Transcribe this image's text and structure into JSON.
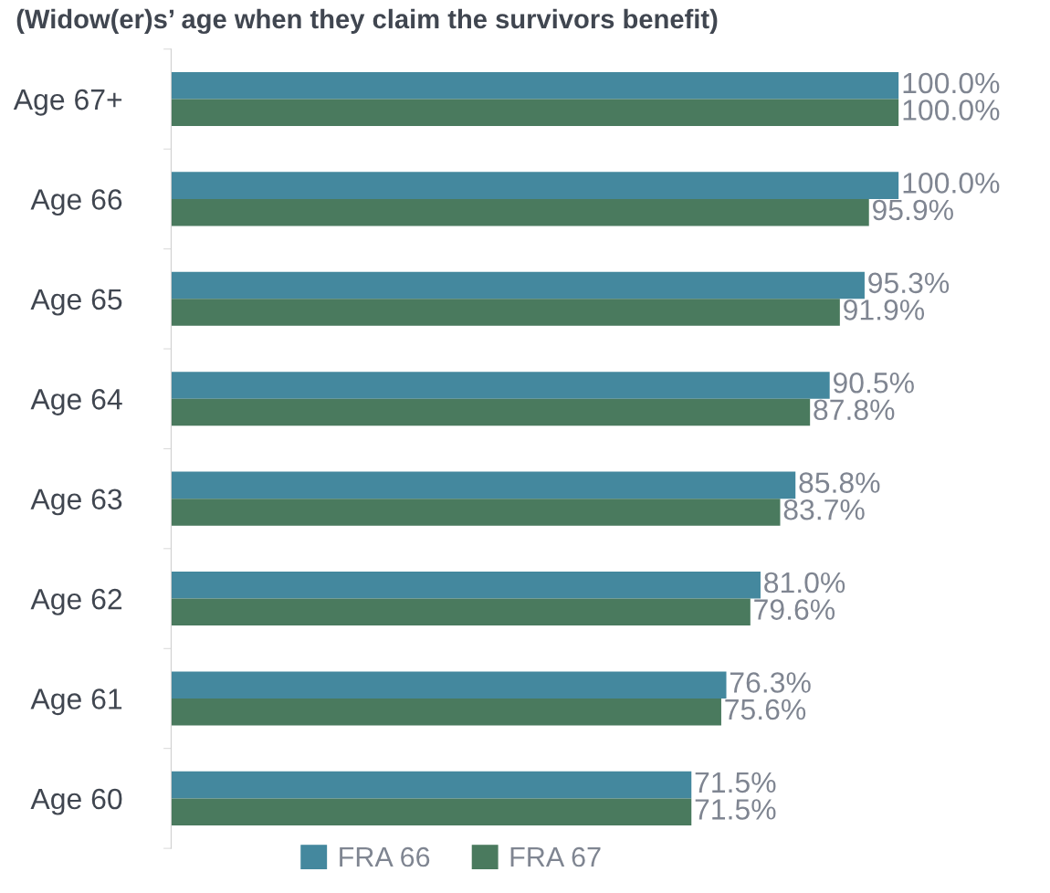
{
  "chart_data": {
    "type": "bar",
    "orientation": "horizontal",
    "title": "(Widow(er)s’ age when they claim the survivors benefit)",
    "categories": [
      "Age 67+",
      "Age 66",
      "Age 65",
      "Age 64",
      "Age 63",
      "Age 62",
      "Age 61",
      "Age 60"
    ],
    "series": [
      {
        "name": "FRA 66",
        "color": "#44889e",
        "values": [
          100.0,
          100.0,
          95.3,
          90.5,
          85.8,
          81.0,
          76.3,
          71.5
        ],
        "value_labels": [
          "100.0%",
          "100.0%",
          "95.3%",
          "90.5%",
          "85.8%",
          "81.0%",
          "76.3%",
          "71.5%"
        ]
      },
      {
        "name": "FRA 67",
        "color": "#4a7a5e",
        "values": [
          100.0,
          95.9,
          91.9,
          87.8,
          83.7,
          79.6,
          75.6,
          71.5
        ],
        "value_labels": [
          "100.0%",
          "95.9%",
          "91.9%",
          "87.8%",
          "83.7%",
          "79.6%",
          "75.6%",
          "71.5%"
        ]
      }
    ],
    "legend": "bottom",
    "grid": false
  }
}
